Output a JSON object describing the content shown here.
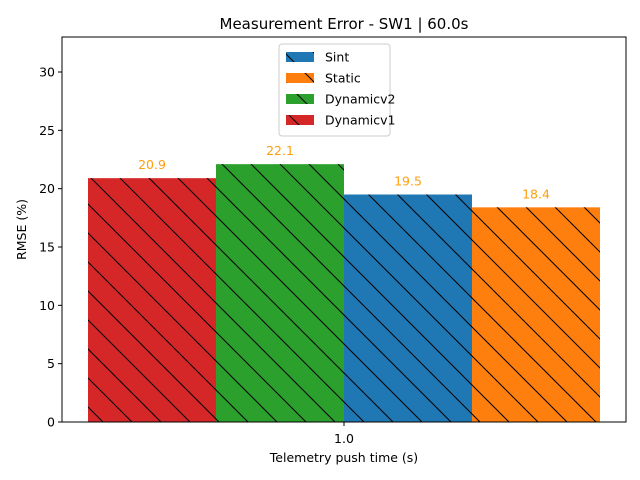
{
  "chart_data": {
    "type": "bar",
    "title": "Measurement Error - SW1 | 60.0s",
    "xlabel": "Telemetry push time (s)",
    "ylabel": "RMSE (%)",
    "categories": [
      "1.0"
    ],
    "ylim": [
      0,
      33
    ],
    "yticks": [
      0,
      5,
      10,
      15,
      20,
      25,
      30
    ],
    "grid": false,
    "legend_position": "top-center",
    "label_color": "#ff9f0e",
    "series": [
      {
        "name": "Dynamicv1",
        "value": 20.9,
        "value_label": "20.9",
        "color": "#d62728",
        "hatch": "diagonal"
      },
      {
        "name": "Dynamicv2",
        "value": 22.1,
        "value_label": "22.1",
        "color": "#2ca02c",
        "hatch": "diagonal"
      },
      {
        "name": "Sint",
        "value": 19.5,
        "value_label": "19.5",
        "color": "#1f77b4",
        "hatch": "diagonal"
      },
      {
        "name": "Static",
        "value": 18.4,
        "value_label": "18.4",
        "color": "#ff7f0e",
        "hatch": "diagonal"
      }
    ],
    "legend_order": [
      "Sint",
      "Static",
      "Dynamicv2",
      "Dynamicv1"
    ]
  }
}
